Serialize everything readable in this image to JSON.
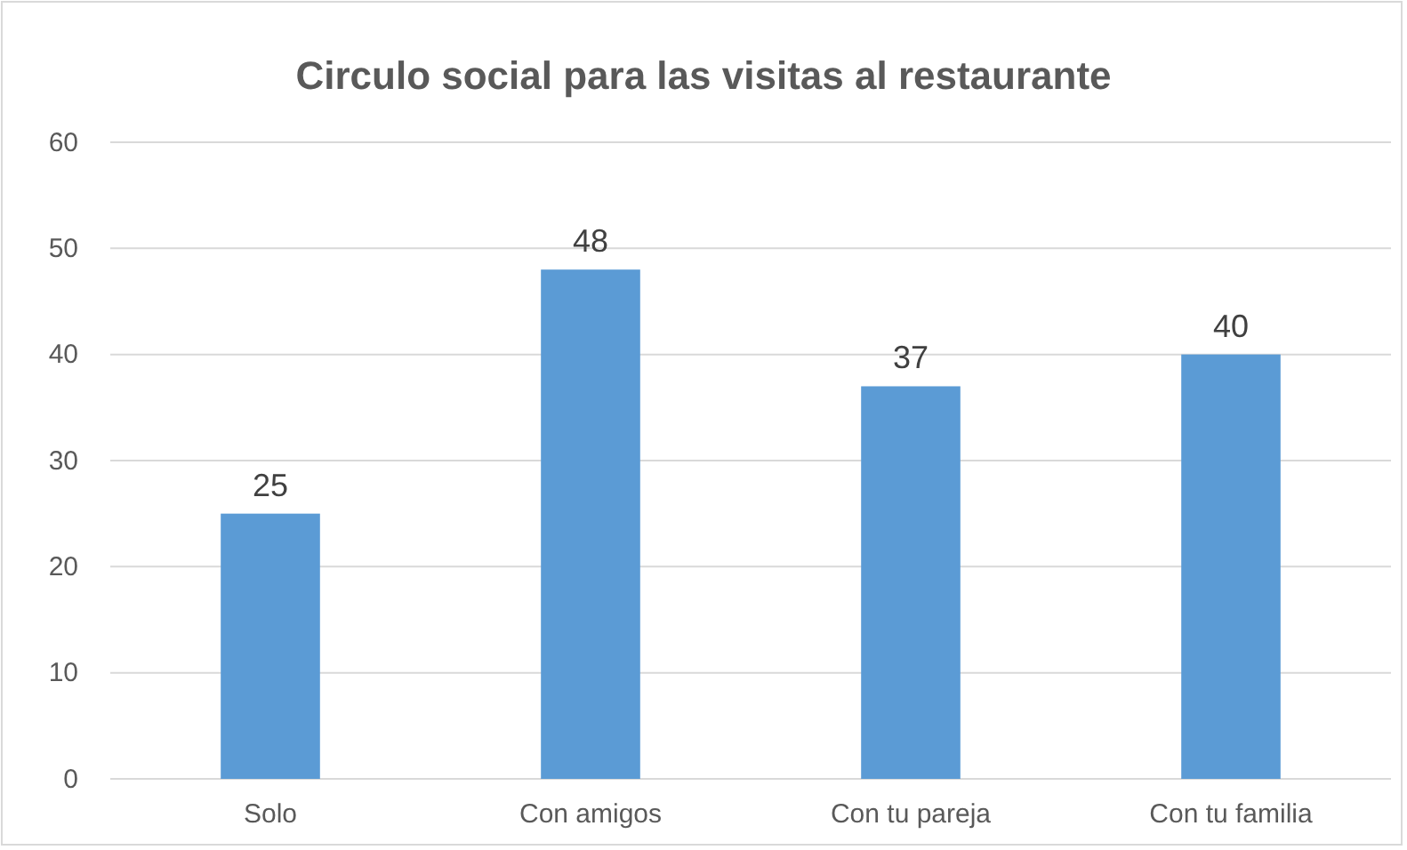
{
  "chart_data": {
    "type": "bar",
    "title": "Circulo social para las visitas al restaurante",
    "categories": [
      "Solo",
      "Con amigos",
      "Con tu pareja",
      "Con tu familia"
    ],
    "values": [
      25,
      48,
      37,
      40
    ],
    "color": "#5b9bd5",
    "ylim": [
      0,
      60
    ],
    "yticks": [
      0,
      10,
      20,
      30,
      40,
      50,
      60
    ],
    "grid": "y",
    "data_labels": true
  }
}
